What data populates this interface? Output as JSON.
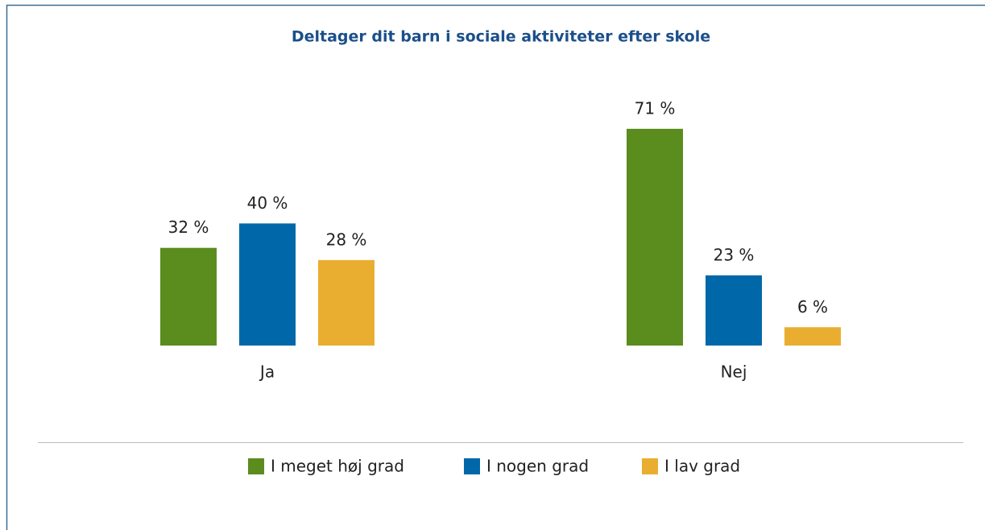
{
  "chart_data": {
    "type": "bar",
    "title": "Deltager dit barn i sociale aktiviteter efter skole",
    "categories": [
      "Ja",
      "Nej"
    ],
    "series": [
      {
        "name": "I meget høj grad",
        "color": "#5b8c1e",
        "values": [
          32,
          71
        ],
        "value_labels": [
          "32 %",
          "71 %"
        ]
      },
      {
        "name": "I nogen grad",
        "color": "#0068a8",
        "values": [
          40,
          23
        ],
        "value_labels": [
          "40 %",
          "23 %"
        ]
      },
      {
        "name": "I lav grad",
        "color": "#e9ae30",
        "values": [
          28,
          6
        ],
        "value_labels": [
          "28 %",
          "6 %"
        ]
      }
    ],
    "legend": "bottom"
  }
}
